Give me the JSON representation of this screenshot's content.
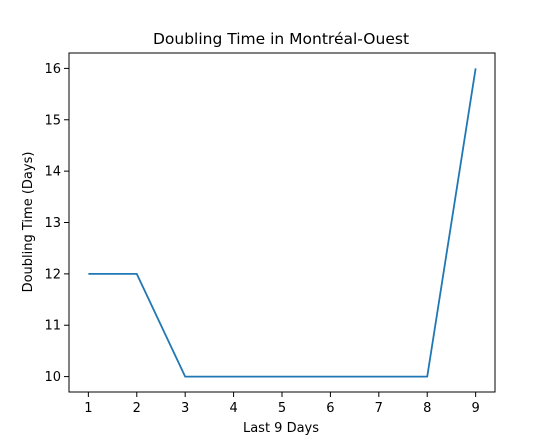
{
  "chart_data": {
    "type": "line",
    "title": "Doubling Time in  Montréal-Ouest",
    "xlabel": "Last 9 Days",
    "ylabel": "Doubling Time (Days)",
    "x": [
      1,
      2,
      3,
      4,
      5,
      6,
      7,
      8,
      9
    ],
    "series": [
      {
        "values": [
          12,
          12,
          10,
          10,
          10,
          10,
          10,
          10,
          16
        ]
      }
    ],
    "xlim": [
      0.6,
      9.4
    ],
    "ylim": [
      9.7,
      16.3
    ],
    "xticks": [
      "1",
      "2",
      "3",
      "4",
      "5",
      "6",
      "7",
      "8",
      "9"
    ],
    "yticks": [
      "10",
      "11",
      "12",
      "13",
      "14",
      "15",
      "16"
    ],
    "grid": false,
    "line_color": "#1f77b4"
  }
}
